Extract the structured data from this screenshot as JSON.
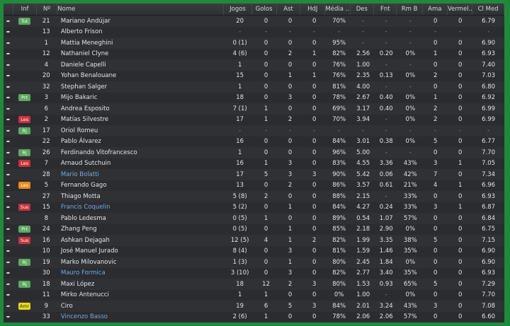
{
  "colors": {
    "frame": "#1f8a3c",
    "panel": "#2b2d31",
    "link_name": "#7ea6dc",
    "badge_green": "#5ea860",
    "badge_red": "#c9333a",
    "badge_orange": "#e88a1a",
    "badge_yellow": "#e6d81a"
  },
  "columns": [
    "",
    "Inf",
    "Nº",
    "Nome",
    "Jogos",
    "Golos",
    "Ast",
    "HdJ",
    "Média ...",
    "Des",
    "Fnt",
    "Rm B",
    "Ama",
    "Vermel..",
    "Cl Med"
  ],
  "rows": [
    {
      "inf": "Tut",
      "badge": "green",
      "no": "21",
      "name": "Mariano Andújar",
      "v": [
        "20",
        "0",
        "0",
        "0",
        "70%",
        "-",
        "-",
        "-",
        "0",
        "0",
        "6.79"
      ]
    },
    {
      "inf": "",
      "no": "13",
      "name": "Alberto Frison",
      "v": [
        "-",
        "-",
        "-",
        "-",
        "-",
        "-",
        "-",
        "-",
        "-",
        "-",
        "-"
      ]
    },
    {
      "inf": "",
      "no": "1",
      "name": "Mattia Meneghini",
      "v": [
        "0 (1)",
        "0",
        "0",
        "0",
        "95%",
        "-",
        "-",
        "-",
        "0",
        "0",
        "6.90"
      ]
    },
    {
      "inf": "",
      "no": "12",
      "name": "Nathaniel Clyne",
      "v": [
        "4 (6)",
        "0",
        "2",
        "1",
        "82%",
        "2.56",
        "0.20",
        "0%",
        "1",
        "0",
        "6.93"
      ]
    },
    {
      "inf": "",
      "no": "4",
      "name": "Daniele Capelli",
      "v": [
        "1",
        "0",
        "0",
        "0",
        "76%",
        "1.00",
        "-",
        "-",
        "0",
        "0",
        "7.40"
      ]
    },
    {
      "inf": "",
      "no": "20",
      "name": "Yohan Benalouane",
      "v": [
        "15",
        "0",
        "1",
        "1",
        "76%",
        "2.35",
        "0.13",
        "0%",
        "2",
        "0",
        "7.03"
      ]
    },
    {
      "inf": "",
      "no": "32",
      "name": "Stephan Salger",
      "v": [
        "1",
        "0",
        "0",
        "0",
        "81%",
        "4.00",
        "-",
        "-",
        "0",
        "0",
        "6.80"
      ]
    },
    {
      "inf": "Prt",
      "badge": "green",
      "no": "3",
      "name": "Mijo Bakaric",
      "v": [
        "18",
        "0",
        "3",
        "0",
        "78%",
        "2.67",
        "0.40",
        "0%",
        "1",
        "0",
        "6.92"
      ]
    },
    {
      "inf": "",
      "no": "6",
      "name": "Andrea Esposito",
      "v": [
        "7 (1)",
        "1",
        "0",
        "0",
        "69%",
        "3.17",
        "0.40",
        "0%",
        "2",
        "0",
        "6.99"
      ]
    },
    {
      "inf": "Les",
      "badge": "red",
      "no": "2",
      "name": "Matías Silvestre",
      "v": [
        "17",
        "1",
        "2",
        "0",
        "70%",
        "3.94",
        "-",
        "0%",
        "2",
        "0",
        "6.99"
      ]
    },
    {
      "inf": "Rj",
      "badge": "green",
      "no": "17",
      "name": "Oriol Romeu",
      "v": [
        "-",
        "-",
        "-",
        "-",
        "-",
        "-",
        "-",
        "-",
        "-",
        "-",
        "-"
      ]
    },
    {
      "inf": "",
      "no": "22",
      "name": "Pablo Álvarez",
      "v": [
        "16",
        "0",
        "0",
        "0",
        "84%",
        "3.01",
        "0.38",
        "0%",
        "5",
        "0",
        "6.77"
      ]
    },
    {
      "inf": "Rj",
      "badge": "green",
      "no": "26",
      "name": "Ferdinando Vitofrancesco",
      "v": [
        "1",
        "0",
        "0",
        "0",
        "96%",
        "5.00",
        "-",
        "-",
        "0",
        "0",
        "7.70"
      ]
    },
    {
      "inf": "Les",
      "badge": "red",
      "no": "7",
      "name": "Arnaud Sutchuin",
      "v": [
        "16",
        "1",
        "3",
        "0",
        "83%",
        "4.55",
        "3.36",
        "43%",
        "3",
        "1",
        "7.05"
      ]
    },
    {
      "inf": "",
      "no": "28",
      "name": "Mario Bolatti",
      "link": true,
      "v": [
        "17",
        "5",
        "3",
        "3",
        "90%",
        "5.42",
        "0.06",
        "42%",
        "7",
        "0",
        "7.34"
      ]
    },
    {
      "inf": "Les",
      "badge": "orange",
      "no": "5",
      "name": "Fernando Gago",
      "v": [
        "13",
        "0",
        "2",
        "0",
        "86%",
        "3.57",
        "0.61",
        "21%",
        "4",
        "1",
        "6.96"
      ]
    },
    {
      "inf": "",
      "no": "27",
      "name": "Thiago Motta",
      "v": [
        "5 (8)",
        "2",
        "0",
        "0",
        "88%",
        "2.15",
        "-",
        "33%",
        "0",
        "0",
        "6.93"
      ]
    },
    {
      "inf": "Sus",
      "badge": "red",
      "no": "15",
      "name": "Francis Coquelin",
      "link": true,
      "v": [
        "5 (2)",
        "0",
        "1",
        "0",
        "84%",
        "4.27",
        "0.24",
        "33%",
        "3",
        "1",
        "6.87"
      ]
    },
    {
      "inf": "",
      "no": "8",
      "name": "Pablo Ledesma",
      "v": [
        "0 (5)",
        "1",
        "0",
        "0",
        "89%",
        "0.54",
        "1.07",
        "57%",
        "0",
        "0",
        "6.84"
      ]
    },
    {
      "inf": "Prt",
      "badge": "green",
      "no": "24",
      "name": "Zhang Peng",
      "v": [
        "0 (5)",
        "0",
        "1",
        "0",
        "85%",
        "2.18",
        "2.90",
        "0%",
        "0",
        "0",
        "6.75"
      ]
    },
    {
      "inf": "Sus",
      "badge": "red",
      "no": "16",
      "name": "Ashkan Dejagah",
      "v": [
        "12 (5)",
        "4",
        "1",
        "2",
        "82%",
        "1.99",
        "3.35",
        "38%",
        "5",
        "0",
        "7.15"
      ]
    },
    {
      "inf": "",
      "no": "10",
      "name": "José Manuel Jurado",
      "v": [
        "8 (4)",
        "0",
        "3",
        "0",
        "81%",
        "1.59",
        "1.46",
        "35%",
        "0",
        "0",
        "6.90"
      ]
    },
    {
      "inf": "Rj",
      "badge": "green",
      "no": "19",
      "name": "Marko Milovanovic",
      "v": [
        "1 (3)",
        "0",
        "1",
        "0",
        "80%",
        "2.45",
        "1.84",
        "0%",
        "0",
        "0",
        "6.90"
      ]
    },
    {
      "inf": "",
      "no": "30",
      "name": "Mauro Formica",
      "link": true,
      "v": [
        "3 (10)",
        "0",
        "3",
        "0",
        "82%",
        "2.77",
        "3.40",
        "35%",
        "0",
        "0",
        "6.93"
      ]
    },
    {
      "inf": "Rj",
      "badge": "green",
      "no": "18",
      "name": "Maxi López",
      "v": [
        "18",
        "12",
        "2",
        "3",
        "80%",
        "1.53",
        "0.93",
        "65%",
        "5",
        "0",
        "7.29"
      ]
    },
    {
      "inf": "",
      "no": "11",
      "name": "Mirko Antenucci",
      "v": [
        "1",
        "1",
        "0",
        "0",
        "0%",
        "1.00",
        "-",
        "0%",
        "0",
        "0",
        "7.70"
      ]
    },
    {
      "inf": "Amr",
      "badge": "yellow",
      "no": "9",
      "name": "Ciro",
      "v": [
        "19",
        "6",
        "5",
        "3",
        "84%",
        "2.01",
        "3.24",
        "43%",
        "3",
        "0",
        "7.08"
      ]
    },
    {
      "inf": "",
      "no": "33",
      "name": "Vincenzo Basso",
      "link": true,
      "v": [
        "2 (6)",
        "1",
        "0",
        "0",
        "78%",
        "2.06",
        "2.06",
        "57%",
        "0",
        "0",
        "6.60"
      ]
    }
  ]
}
